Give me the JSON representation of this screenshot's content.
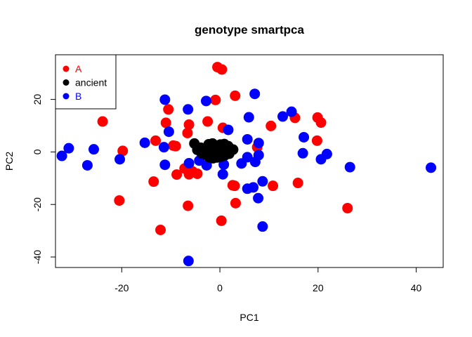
{
  "chart_data": {
    "type": "scatter",
    "title": "genotype smartpca",
    "xlabel": "PC1",
    "ylabel": "PC2",
    "xlim": [
      -33.5,
      45.5
    ],
    "ylim": [
      -44,
      37
    ],
    "xticks": [
      -20,
      0,
      20,
      40
    ],
    "xtick_labels": [
      "-20",
      "0",
      "20",
      "40"
    ],
    "yticks": [
      -40,
      -20,
      0,
      20
    ],
    "ytick_labels": [
      "-40",
      "-20",
      "0",
      "20"
    ],
    "grid": false,
    "legend_position": "top-left",
    "series": [
      {
        "name": "A",
        "color": "#ff0000",
        "x": [
          -0.5,
          0.4,
          -10.5,
          3.1,
          -0.9,
          -11.0,
          -2.5,
          0.6,
          -6.3,
          10.4,
          -13.1,
          -9.5,
          -9.0,
          -7.2,
          -23.9,
          -19.8,
          19.9,
          20.6,
          15.3,
          -6.6,
          -6.3,
          -5.6,
          -4.6,
          7.6,
          19.8,
          -8.8,
          -6.3,
          2.6,
          3.0,
          10.8,
          15.9,
          -13.5,
          -20.5,
          -6.5,
          3.2,
          0.3,
          26.0,
          -12.1
        ],
        "y": [
          32.3,
          31.4,
          16.2,
          21.4,
          19.8,
          11.1,
          11.6,
          9.2,
          10.4,
          9.9,
          4.3,
          2.4,
          2.2,
          -6.3,
          11.6,
          0.4,
          13.1,
          11.2,
          13.0,
          7.2,
          -6.2,
          -7.4,
          -8.3,
          1.8,
          4.3,
          -8.6,
          -8.5,
          -12.7,
          -12.9,
          -12.9,
          -11.8,
          -11.3,
          -18.5,
          -20.5,
          -19.5,
          -26.2,
          -21.4,
          -29.7
        ]
      },
      {
        "name": "ancient",
        "color": "#000000",
        "x": [
          -5.2,
          -4.6,
          -3.9,
          -3.3,
          -2.7,
          -2.1,
          -1.5,
          -0.9,
          -0.3,
          0.3,
          0.9,
          1.5,
          2.1,
          2.7,
          -3.7,
          -2.9,
          -2.1,
          -1.3,
          -0.5,
          0.3,
          1.1,
          1.9,
          -2.3,
          -1.5,
          -0.7,
          0.1,
          0.9,
          1.7,
          -2.2,
          -1.4,
          -0.6,
          0.2,
          1.0,
          -1.2,
          -0.4,
          0.4
        ],
        "y": [
          3.2,
          0.8,
          1.6,
          0.4,
          0.9,
          1.3,
          2.6,
          0.3,
          1.8,
          1.1,
          0.6,
          2.0,
          0.2,
          0.9,
          -0.6,
          -1.0,
          -0.8,
          -1.2,
          -0.5,
          -1.4,
          -0.9,
          -0.7,
          2.9,
          3.2,
          2.4,
          2.8,
          3.0,
          2.2,
          -2.0,
          -2.4,
          -2.1,
          -1.8,
          -1.3,
          1.4,
          0.7,
          0.1
        ]
      },
      {
        "name": "B",
        "color": "#0000ff",
        "x": [
          -11.2,
          -2.8,
          7.1,
          -6.5,
          5.9,
          14.6,
          12.8,
          17.1,
          5.6,
          -10.4,
          -15.3,
          -11.4,
          7.9,
          1.7,
          -30.8,
          -32.2,
          -25.7,
          -27.0,
          -20.4,
          -11.2,
          -6.3,
          -4.2,
          -2.7,
          0.8,
          4.4,
          5.6,
          7.2,
          7.9,
          16.9,
          20.6,
          21.8,
          26.5,
          43.0,
          0.6,
          5.6,
          6.8,
          8.7,
          7.8,
          8.7,
          -6.4
        ],
        "y": [
          19.9,
          19.4,
          22.1,
          16.2,
          13.2,
          15.3,
          13.5,
          5.6,
          4.8,
          7.7,
          3.5,
          1.8,
          3.4,
          8.4,
          1.4,
          -1.5,
          1.0,
          -5.1,
          -2.8,
          -4.9,
          -4.3,
          -3.3,
          -5.1,
          -4.8,
          -4.4,
          -2.0,
          -3.8,
          -1.2,
          -0.5,
          -2.8,
          -0.8,
          -5.8,
          -6.0,
          -8.5,
          -14.0,
          -13.5,
          -11.2,
          -17.6,
          -28.4,
          -41.5
        ]
      }
    ]
  }
}
